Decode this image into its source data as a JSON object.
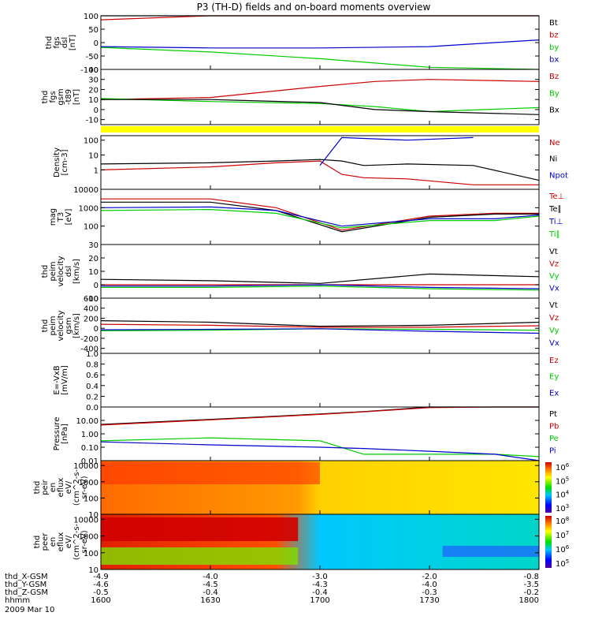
{
  "title": "P3 (TH-D) fields and on-board moments overview",
  "x_axis": {
    "time_ticks": [
      "1600",
      "1630",
      "1700",
      "1730",
      "1800"
    ],
    "rows": [
      {
        "label": "thd_X-GSM",
        "values": [
          "-4.9",
          "-4.0",
          "-3.0",
          "-2.0",
          "-0.8"
        ]
      },
      {
        "label": "thd_Y-GSM",
        "values": [
          "-4.6",
          "-4.5",
          "-4.3",
          "-4.0",
          "-3.5"
        ]
      },
      {
        "label": "thd_Z-GSM",
        "values": [
          "-0.5",
          "-0.4",
          "-0.4",
          "-0.3",
          "-0.2"
        ]
      },
      {
        "label": "hhmm",
        "values": []
      }
    ],
    "date": "2009 Mar 10"
  },
  "colors": {
    "black": "#000000",
    "red": "#cc0000",
    "green": "#00cc00",
    "blue": "#0000cc",
    "yellow": "#ffff00"
  },
  "chart_data": [
    {
      "type": "line",
      "panel": "fgs-dsl",
      "ylabel": [
        "thd",
        "fgs",
        "dsl",
        "[nT]"
      ],
      "ylim": [
        -100,
        100
      ],
      "yticks": [
        "100",
        "50",
        "0",
        "-50",
        "-100"
      ],
      "x": [
        0,
        0.5,
        1,
        1.5,
        2
      ],
      "series": [
        {
          "name": "Bt",
          "color": "black",
          "values": [
            100,
            100,
            100,
            100,
            100
          ]
        },
        {
          "name": "bz",
          "color": "red",
          "values": [
            85,
            100,
            100,
            100,
            100
          ]
        },
        {
          "name": "by",
          "color": "green",
          "values": [
            -18,
            -35,
            -60,
            -92,
            -100
          ]
        },
        {
          "name": "bx",
          "color": "blue",
          "values": [
            -15,
            -20,
            -20,
            -15,
            10
          ]
        }
      ]
    },
    {
      "type": "line",
      "panel": "fgs-gsm",
      "ylabel": [
        "thd",
        "fgs",
        "gsm",
        "-t89",
        "[nT]"
      ],
      "ylim": [
        -15,
        40
      ],
      "yticks": [
        "40",
        "30",
        "20",
        "10",
        "0",
        "-10"
      ],
      "x": [
        0,
        0.5,
        1,
        1.25,
        1.5,
        2
      ],
      "series": [
        {
          "name": "Bz",
          "color": "red",
          "values": [
            10,
            12,
            23,
            28,
            30,
            28
          ]
        },
        {
          "name": "By",
          "color": "green",
          "values": [
            11,
            8,
            6,
            3,
            -2,
            2
          ]
        },
        {
          "name": "Bx",
          "color": "black",
          "values": [
            10,
            10,
            7,
            0,
            -2,
            -5
          ]
        }
      ]
    },
    {
      "type": "line",
      "panel": "density",
      "log": true,
      "ylabel": [
        "Density",
        "[cm-3]"
      ],
      "ylim": [
        0.05,
        200
      ],
      "yticks": [
        "100",
        "10",
        "1"
      ],
      "x": [
        0,
        0.5,
        0.8,
        1,
        1.1,
        1.2,
        1.4,
        1.7,
        2
      ],
      "series": [
        {
          "name": "Ne",
          "color": "red",
          "values": [
            1.0,
            1.6,
            3,
            4,
            0.5,
            0.3,
            0.25,
            0.1,
            0.1
          ]
        },
        {
          "name": "Ni",
          "color": "black",
          "values": [
            2.5,
            3,
            4,
            5,
            4,
            2,
            2.5,
            2,
            0.2
          ]
        },
        {
          "name": "Npot",
          "color": "blue",
          "values": [
            null,
            null,
            null,
            2,
            150,
            130,
            100,
            150,
            null
          ]
        }
      ]
    },
    {
      "type": "line",
      "panel": "mom-temperature",
      "log": true,
      "ylabel": [
        "mag",
        "T3",
        "[eV]"
      ],
      "ylim": [
        10,
        10000
      ],
      "yticks": [
        "10000",
        "1000",
        "100"
      ],
      "x": [
        0,
        0.5,
        0.8,
        1.1,
        1.5,
        1.8,
        2
      ],
      "series": [
        {
          "name": "Te⊥",
          "color": "red",
          "values": [
            3000,
            3000,
            1000,
            60,
            350,
            500,
            500
          ]
        },
        {
          "name": "Te∥",
          "color": "black",
          "values": [
            2000,
            2000,
            700,
            50,
            300,
            450,
            450
          ]
        },
        {
          "name": "Ti⊥",
          "color": "blue",
          "values": [
            1000,
            1100,
            700,
            100,
            250,
            250,
            400
          ]
        },
        {
          "name": "Ti∥",
          "color": "green",
          "values": [
            700,
            800,
            500,
            80,
            200,
            200,
            350
          ]
        }
      ]
    },
    {
      "type": "line",
      "panel": "peim-velocity-dsl",
      "ylabel": [
        "thd",
        "peim",
        "velocity",
        "dsl",
        "[km/s]"
      ],
      "ylim": [
        -10,
        30
      ],
      "yticks": [
        "30",
        "20",
        "10",
        "0",
        "-10"
      ],
      "x": [
        0,
        0.5,
        1,
        1.5,
        2
      ],
      "series": [
        {
          "name": "Vt",
          "color": "black",
          "values": [
            4,
            3,
            1,
            8,
            6
          ]
        },
        {
          "name": "Vz",
          "color": "red",
          "values": [
            0,
            0,
            0,
            0,
            0
          ]
        },
        {
          "name": "Vy",
          "color": "green",
          "values": [
            -2,
            -2,
            -1,
            -3,
            -4
          ]
        },
        {
          "name": "Vx",
          "color": "blue",
          "values": [
            -1,
            -1,
            0,
            -2,
            -3
          ]
        }
      ]
    },
    {
      "type": "line",
      "panel": "peim-velocity-gsm",
      "ylabel": [
        "thd",
        "peim",
        "velocity",
        "gsm",
        "[km/s]"
      ],
      "ylim": [
        -500,
        600
      ],
      "yticks": [
        "600",
        "400",
        "200",
        "0",
        "-200",
        "-400"
      ],
      "x": [
        0,
        0.5,
        1,
        1.5,
        2
      ],
      "series": [
        {
          "name": "Vt",
          "color": "black",
          "values": [
            150,
            120,
            40,
            60,
            120
          ]
        },
        {
          "name": "Vz",
          "color": "red",
          "values": [
            80,
            60,
            20,
            20,
            50
          ]
        },
        {
          "name": "Vy",
          "color": "green",
          "values": [
            -50,
            -40,
            -10,
            -20,
            -40
          ]
        },
        {
          "name": "Vx",
          "color": "blue",
          "values": [
            -30,
            -20,
            -10,
            -60,
            -100
          ]
        }
      ]
    },
    {
      "type": "line",
      "panel": "e-vxb",
      "ylabel": [
        "E=-VxB",
        "[mV/m]"
      ],
      "ylim": [
        0,
        1
      ],
      "yticks": [
        "1.0",
        "0.8",
        "0.6",
        "0.4",
        "0.2",
        "0.0"
      ],
      "series": [
        {
          "name": "Ez",
          "color": "red",
          "values": []
        },
        {
          "name": "Ey",
          "color": "green",
          "values": []
        },
        {
          "name": "Ex",
          "color": "blue",
          "values": []
        }
      ]
    },
    {
      "type": "line",
      "panel": "pressure",
      "log": true,
      "ylabel": [
        "Pressure",
        "[nPa]"
      ],
      "ylim": [
        0.01,
        100
      ],
      "yticks": [
        "10.00",
        "1.00",
        "0.10",
        "0.01"
      ],
      "x": [
        0,
        0.5,
        1,
        1.2,
        1.5,
        1.8,
        2
      ],
      "series": [
        {
          "name": "Pt",
          "color": "black",
          "values": [
            5,
            12,
            30,
            45,
            100,
            100,
            100
          ]
        },
        {
          "name": "Pb",
          "color": "red",
          "values": [
            4.5,
            11,
            28,
            43,
            90,
            100,
            100
          ]
        },
        {
          "name": "Pe",
          "color": "green",
          "values": [
            0.3,
            0.5,
            0.3,
            0.03,
            0.03,
            0.03,
            0.02
          ]
        },
        {
          "name": "Pi",
          "color": "blue",
          "values": [
            0.25,
            0.15,
            0.1,
            0.08,
            0.05,
            0.03,
            0.01
          ]
        }
      ]
    },
    {
      "type": "heatmap",
      "panel": "peir-en-eflux",
      "ylabel": [
        "thd",
        "peir",
        "en",
        "eflux",
        "eV/",
        "(cm^2-s-",
        "sr-eV)"
      ],
      "ylim": [
        10,
        20000
      ],
      "yticks": [
        "10000",
        "1000",
        "100",
        "10"
      ],
      "colorbar": {
        "ticks": [
          "10^6",
          "10^5",
          "10^4",
          "10^3"
        ]
      }
    },
    {
      "type": "heatmap",
      "panel": "peer-en-eflux",
      "ylabel": [
        "thd",
        "peer",
        "en",
        "eflux",
        "eV/",
        "(cm^2-s-",
        "sr-eV)"
      ],
      "ylim": [
        10,
        20000
      ],
      "yticks": [
        "10000",
        "1000",
        "100",
        "10"
      ],
      "colorbar": {
        "ticks": [
          "10^8",
          "10^7",
          "10^6",
          "10^5"
        ]
      }
    }
  ]
}
